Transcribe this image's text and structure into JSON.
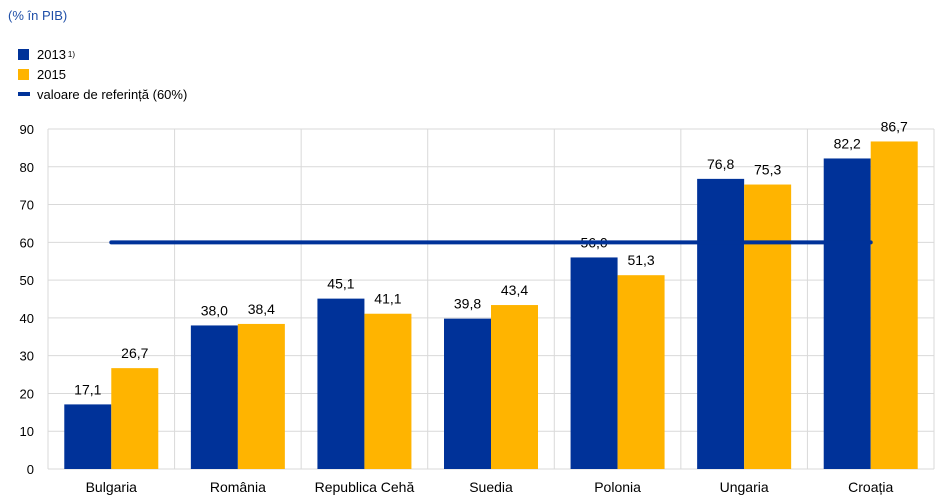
{
  "unit_label": "(% în PIB)",
  "legend": [
    {
      "label": "2013",
      "note": "1)",
      "color": "#003299",
      "kind": "box"
    },
    {
      "label": "2015",
      "note": "",
      "color": "#ffb400",
      "kind": "box"
    },
    {
      "label": "valoare de referință (60%)",
      "note": "",
      "color": "#003299",
      "kind": "line"
    }
  ],
  "chart_data": {
    "type": "bar",
    "categories": [
      "Bulgaria",
      "România",
      "Republica Cehă",
      "Suedia",
      "Polonia",
      "Ungaria",
      "Croația"
    ],
    "series": [
      {
        "name": "2013",
        "color": "#003299",
        "values": [
          17.1,
          38.0,
          45.1,
          39.8,
          56.0,
          76.8,
          82.2
        ],
        "labels": [
          "17,1",
          "38,0",
          "45,1",
          "39,8",
          "56,0",
          "76,8",
          "82,2"
        ]
      },
      {
        "name": "2015",
        "color": "#ffb400",
        "values": [
          26.7,
          38.4,
          41.1,
          43.4,
          51.3,
          75.3,
          86.7
        ],
        "labels": [
          "26,7",
          "38,4",
          "41,1",
          "43,4",
          "51,3",
          "75,3",
          "86,7"
        ]
      }
    ],
    "reference_line": {
      "name": "valoare de referință (60%)",
      "value": 60,
      "color": "#003299"
    },
    "ylim": [
      0,
      90
    ],
    "yticks": [
      0,
      10,
      20,
      30,
      40,
      50,
      60,
      70,
      80,
      90
    ],
    "grid": true,
    "legend_position": "top-left"
  }
}
